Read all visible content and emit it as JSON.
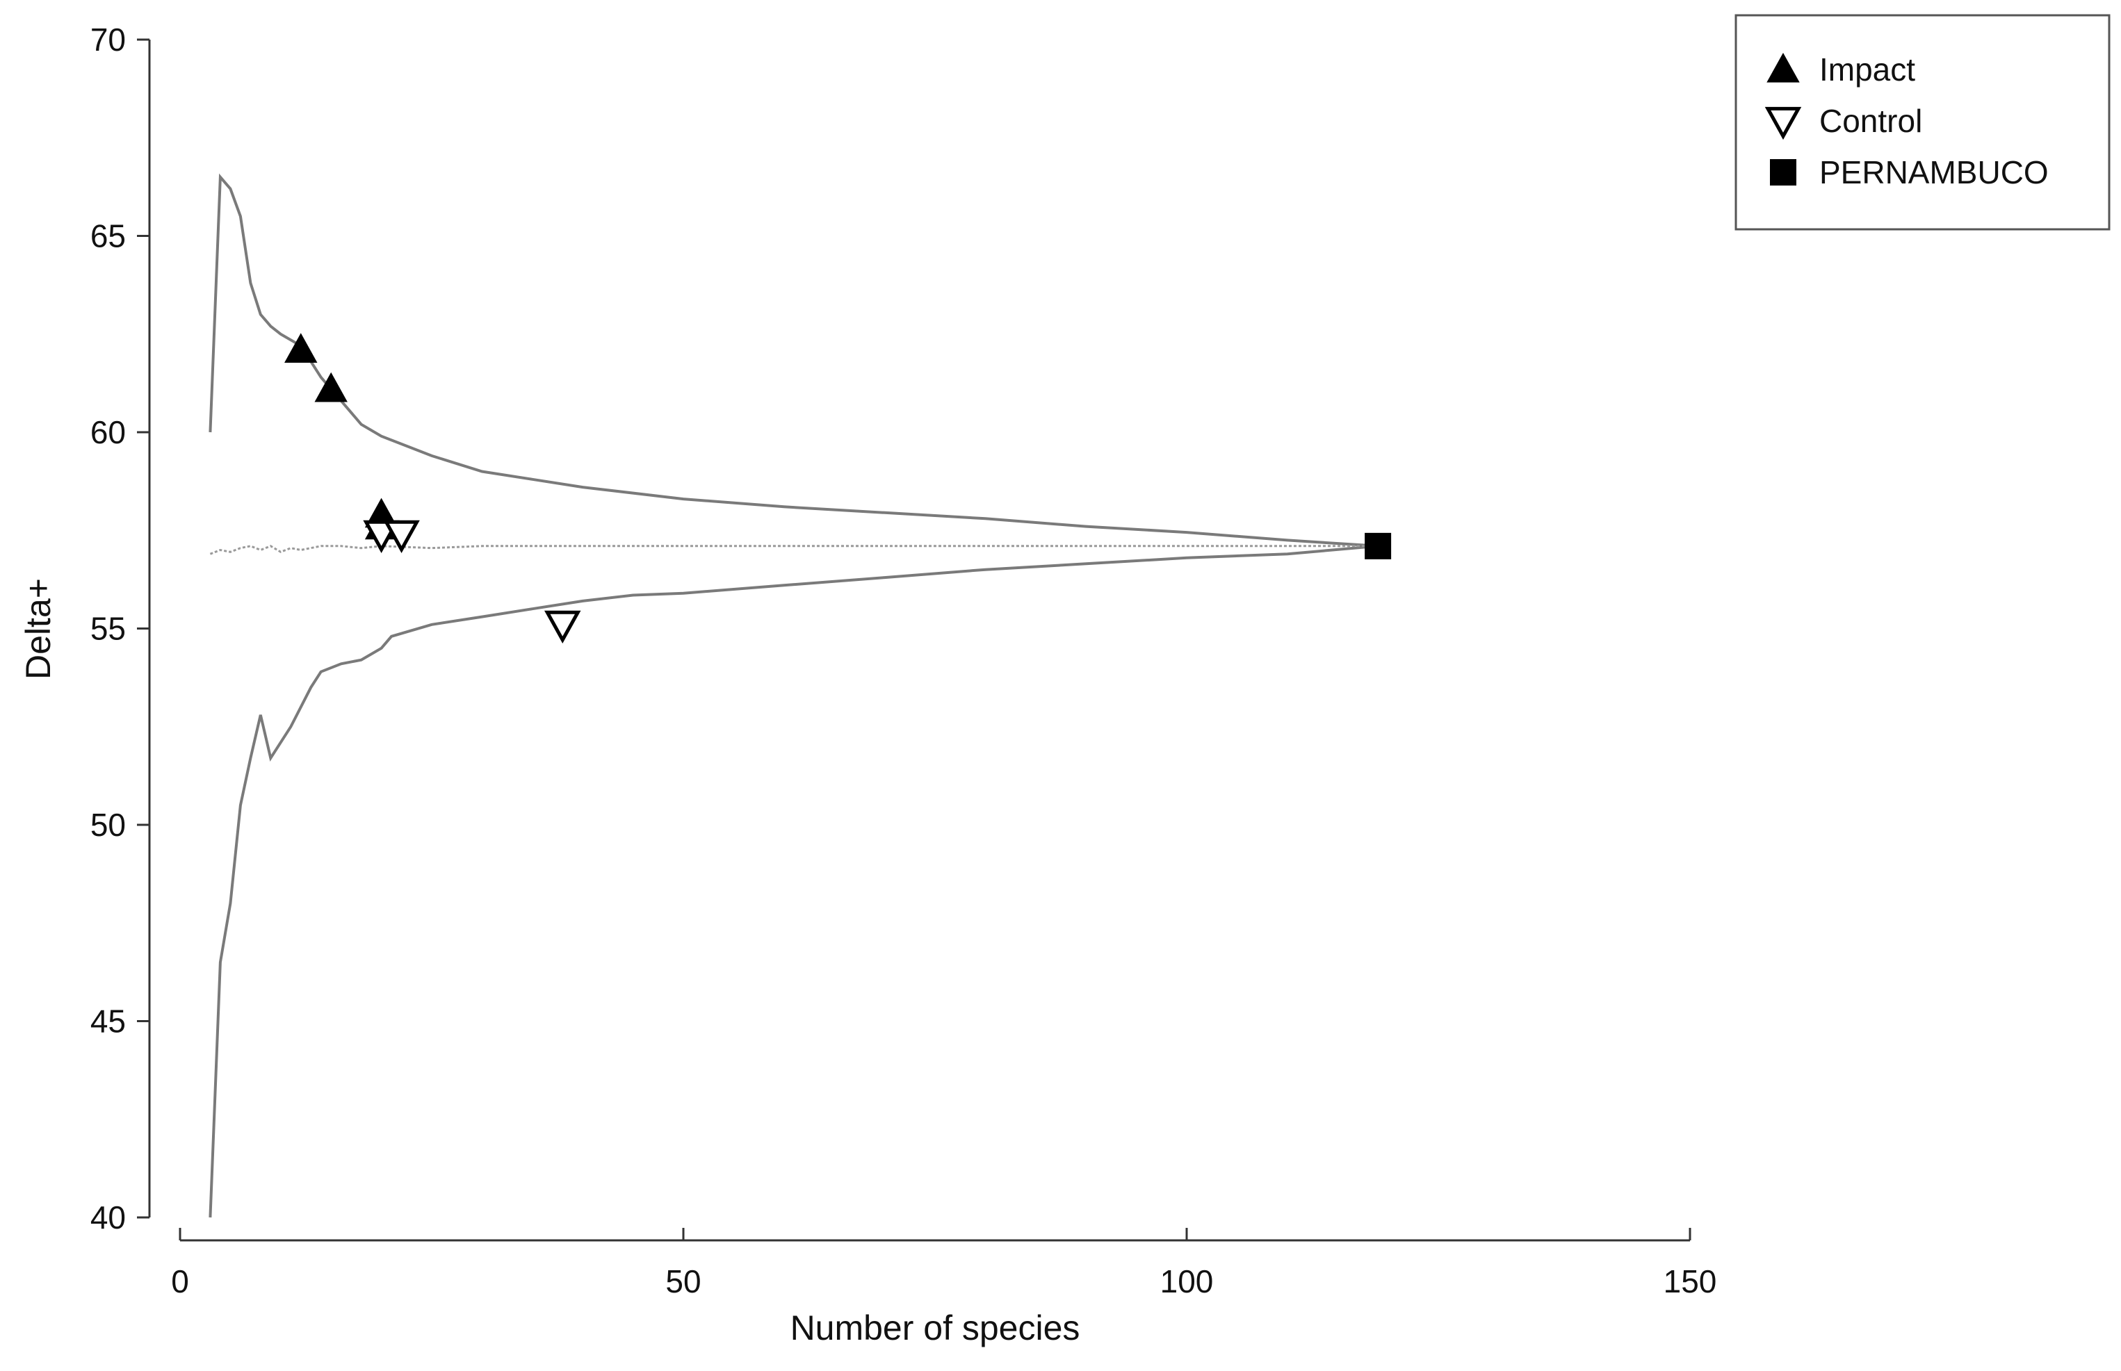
{
  "chart_data": {
    "type": "scatter",
    "title": "",
    "xlabel": "Number of species",
    "ylabel": "Delta+",
    "xlim": [
      0,
      150
    ],
    "ylim": [
      40,
      70
    ],
    "x_ticks": [
      "0",
      "50",
      "100",
      "150"
    ],
    "y_ticks": [
      "40",
      "45",
      "50",
      "55",
      "60",
      "65",
      "70"
    ],
    "grid": false,
    "legend_position": "top-right",
    "series": [
      {
        "name": "Impact",
        "marker": "filled-triangle-up",
        "color": "#000000",
        "points": [
          [
            12,
            62.1
          ],
          [
            15,
            61.1
          ],
          [
            20,
            57.9
          ],
          [
            20,
            57.6
          ]
        ]
      },
      {
        "name": "Control",
        "marker": "open-triangle-down",
        "color": "#000000",
        "points": [
          [
            20,
            57.4
          ],
          [
            22,
            57.4
          ],
          [
            38,
            55.1
          ]
        ]
      },
      {
        "name": "PERNAMBUCO",
        "marker": "filled-square",
        "color": "#000000",
        "points": [
          [
            119,
            57.1
          ]
        ]
      }
    ],
    "funnel": {
      "color": "#7a7a7a",
      "upper": [
        [
          3,
          60
        ],
        [
          4,
          66.5
        ],
        [
          5,
          66.2
        ],
        [
          6,
          65.5
        ],
        [
          7,
          63.8
        ],
        [
          8,
          63
        ],
        [
          9,
          62.7
        ],
        [
          10,
          62.5
        ],
        [
          12,
          62.2
        ],
        [
          14,
          61.4
        ],
        [
          16,
          60.8
        ],
        [
          18,
          60.2
        ],
        [
          20,
          59.9
        ],
        [
          25,
          59.4
        ],
        [
          30,
          59
        ],
        [
          35,
          58.8
        ],
        [
          40,
          58.6
        ],
        [
          50,
          58.3
        ],
        [
          60,
          58.1
        ],
        [
          70,
          57.95
        ],
        [
          80,
          57.8
        ],
        [
          90,
          57.6
        ],
        [
          100,
          57.45
        ],
        [
          110,
          57.25
        ],
        [
          119,
          57.1
        ]
      ],
      "lower": [
        [
          3,
          40
        ],
        [
          4,
          46.5
        ],
        [
          5,
          48
        ],
        [
          6,
          50.5
        ],
        [
          7,
          51.7
        ],
        [
          8,
          52.8
        ],
        [
          9,
          51.7
        ],
        [
          11,
          52.5
        ],
        [
          13,
          53.5
        ],
        [
          14,
          53.9
        ],
        [
          16,
          54.1
        ],
        [
          18,
          54.2
        ],
        [
          20,
          54.5
        ],
        [
          21,
          54.8
        ],
        [
          25,
          55.1
        ],
        [
          30,
          55.3
        ],
        [
          35,
          55.5
        ],
        [
          40,
          55.7
        ],
        [
          45,
          55.85
        ],
        [
          50,
          55.9
        ],
        [
          60,
          56.1
        ],
        [
          70,
          56.3
        ],
        [
          80,
          56.5
        ],
        [
          90,
          56.65
        ],
        [
          100,
          56.8
        ],
        [
          110,
          56.9
        ],
        [
          119,
          57.1
        ]
      ],
      "mean": [
        [
          3,
          56.9
        ],
        [
          4,
          57.0
        ],
        [
          5,
          56.95
        ],
        [
          6,
          57.05
        ],
        [
          7,
          57.1
        ],
        [
          8,
          57.0
        ],
        [
          9,
          57.1
        ],
        [
          10,
          56.95
        ],
        [
          11,
          57.05
        ],
        [
          12,
          57.0
        ],
        [
          14,
          57.1
        ],
        [
          16,
          57.1
        ],
        [
          18,
          57.05
        ],
        [
          20,
          57.1
        ],
        [
          25,
          57.05
        ],
        [
          30,
          57.1
        ],
        [
          50,
          57.1
        ],
        [
          80,
          57.1
        ],
        [
          119,
          57.1
        ]
      ]
    }
  }
}
